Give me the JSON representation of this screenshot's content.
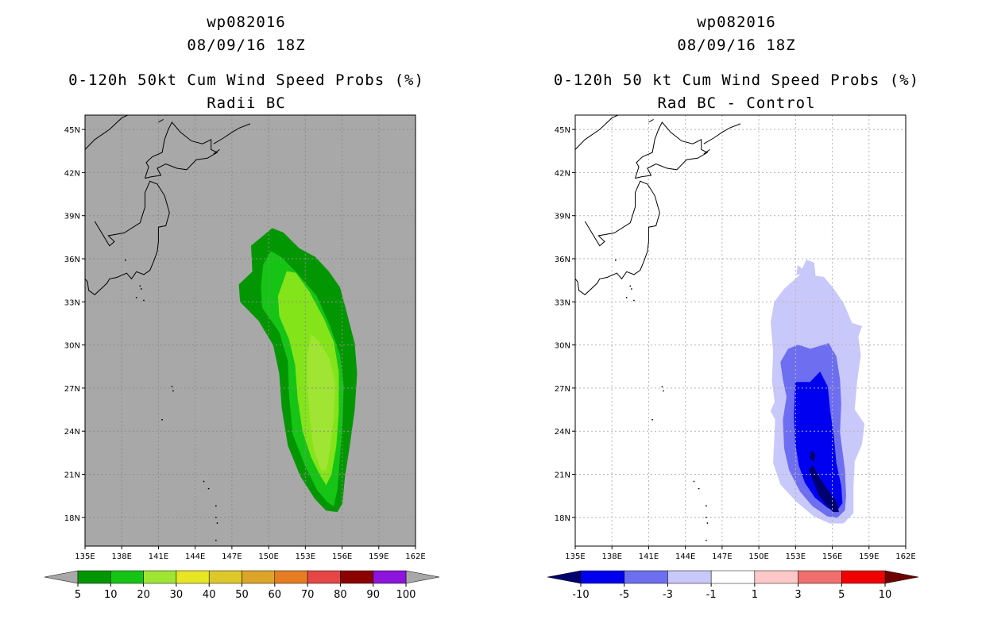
{
  "left_panel": {
    "title_line1": "wp082016",
    "title_line2": "08/09/16 18Z",
    "title_line3": "0-120h 50kt Cum Wind Speed Probs (%)",
    "title_line4": "Radii BC",
    "background_color": "#a8a8a8",
    "colorbar": {
      "ticks": [
        "5",
        "10",
        "20",
        "30",
        "40",
        "50",
        "60",
        "70",
        "80",
        "90",
        "100"
      ],
      "colors": [
        "#039603",
        "#16c416",
        "#a0e434",
        "#e6e624",
        "#dcc828",
        "#dca52a",
        "#e67d23",
        "#e64646",
        "#8c0000",
        "#8c14dc"
      ],
      "end_color": "#a8a8a8"
    }
  },
  "right_panel": {
    "title_line1": "wp082016",
    "title_line2": "08/09/16 18Z",
    "title_line3": "0-120h 50 kt Cum Wind Speed Probs (%)",
    "title_line4": "Rad BC - Control",
    "background_color": "#ffffff",
    "colorbar": {
      "ticks": [
        "-10",
        "-5",
        "-3",
        "-1",
        "1",
        "3",
        "5",
        "10"
      ],
      "colors": [
        "#0000f0",
        "#6e6ef0",
        "#c8c8fa",
        "#ffffff",
        "#ffc8c8",
        "#f06e6e",
        "#f00000"
      ],
      "low_end_color": "#00006e",
      "high_end_color": "#6e0000"
    }
  },
  "map": {
    "lon_labels": [
      "135E",
      "138E",
      "141E",
      "144E",
      "147E",
      "150E",
      "153E",
      "156E",
      "159E",
      "162E"
    ],
    "lat_labels": [
      "18N",
      "21N",
      "24N",
      "27N",
      "30N",
      "33N",
      "36N",
      "39N",
      "42N",
      "45N"
    ],
    "lon_range": [
      135,
      162
    ],
    "lat_range": [
      16,
      46
    ]
  }
}
